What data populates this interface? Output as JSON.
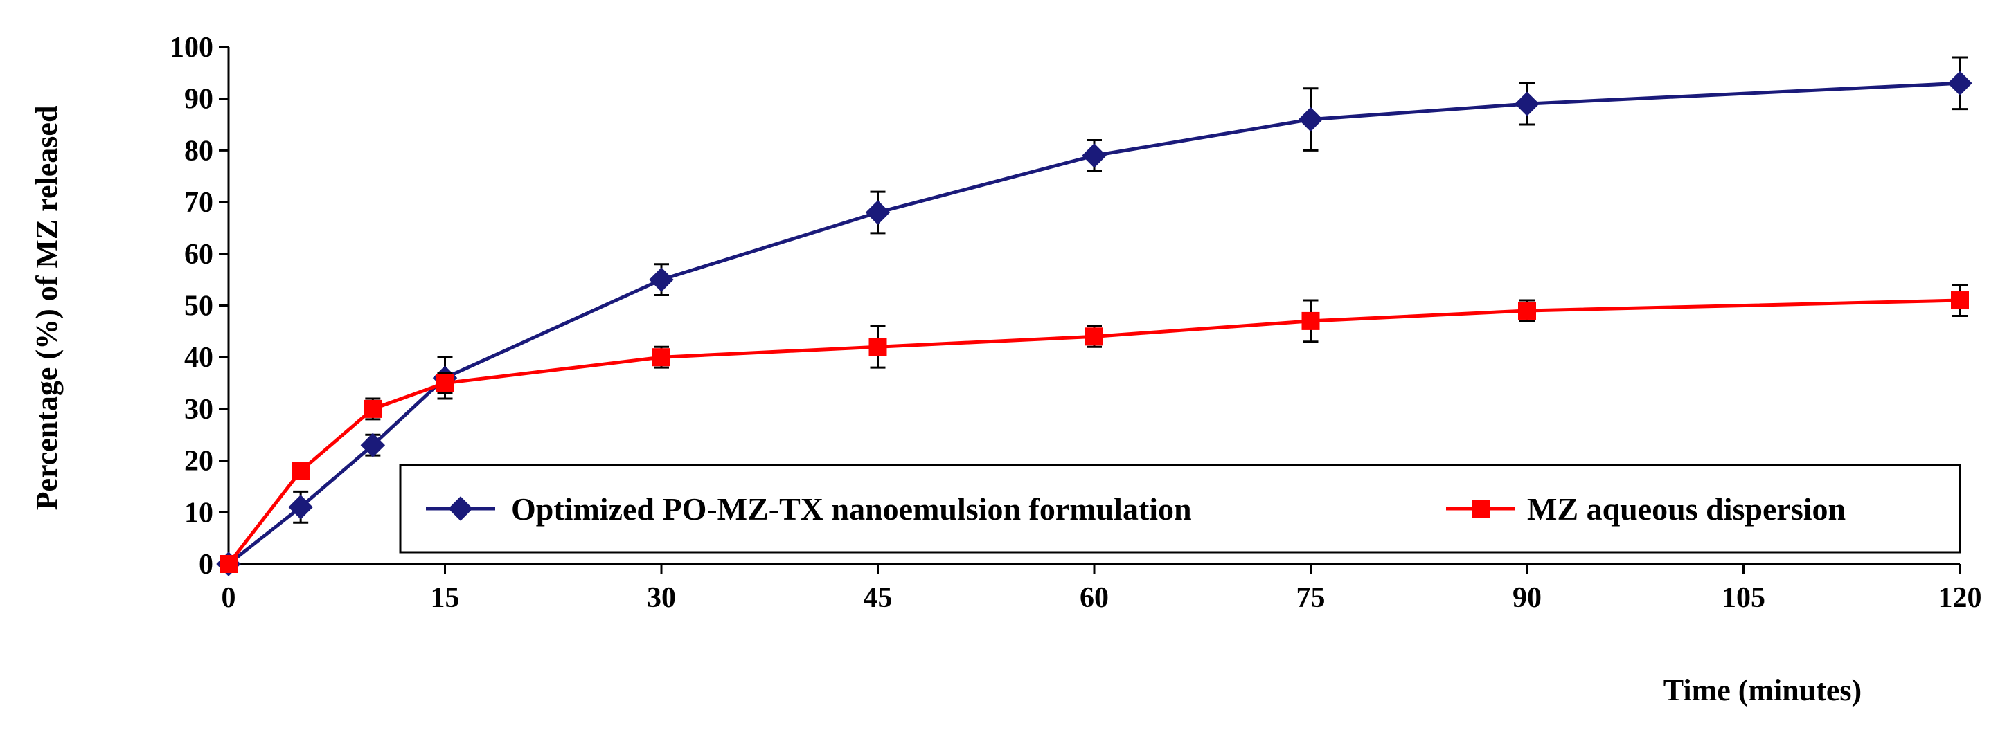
{
  "chart_data": {
    "type": "line",
    "title": "",
    "xlabel": "Time (minutes)",
    "ylabel": "Percentage (%) of MZ released",
    "xlim": [
      0,
      120
    ],
    "ylim": [
      0,
      100
    ],
    "x_ticks": [
      0,
      15,
      30,
      45,
      60,
      75,
      90,
      105,
      120
    ],
    "y_ticks": [
      0,
      10,
      20,
      30,
      40,
      50,
      60,
      70,
      80,
      90,
      100
    ],
    "legend_position": "inside-bottom",
    "series": [
      {
        "name": "Optimized PO-MZ-TX nanoemulsion  formulation",
        "color": "#1a1a7a",
        "marker": "diamond",
        "x": [
          0,
          5,
          10,
          15,
          30,
          45,
          60,
          75,
          90,
          120
        ],
        "values": [
          0,
          11,
          23,
          36,
          55,
          68,
          79,
          86,
          89,
          93
        ],
        "errors": [
          0,
          3,
          2,
          4,
          3,
          4,
          3,
          6,
          4,
          5
        ]
      },
      {
        "name": "MZ aqueous dispersion",
        "color": "#ff0000",
        "marker": "square",
        "x": [
          0,
          5,
          10,
          15,
          30,
          45,
          60,
          75,
          90,
          120
        ],
        "values": [
          0,
          18,
          30,
          35,
          40,
          42,
          44,
          47,
          49,
          51
        ],
        "errors": [
          0,
          0,
          2,
          2,
          2,
          4,
          2,
          4,
          2,
          3
        ]
      }
    ]
  }
}
